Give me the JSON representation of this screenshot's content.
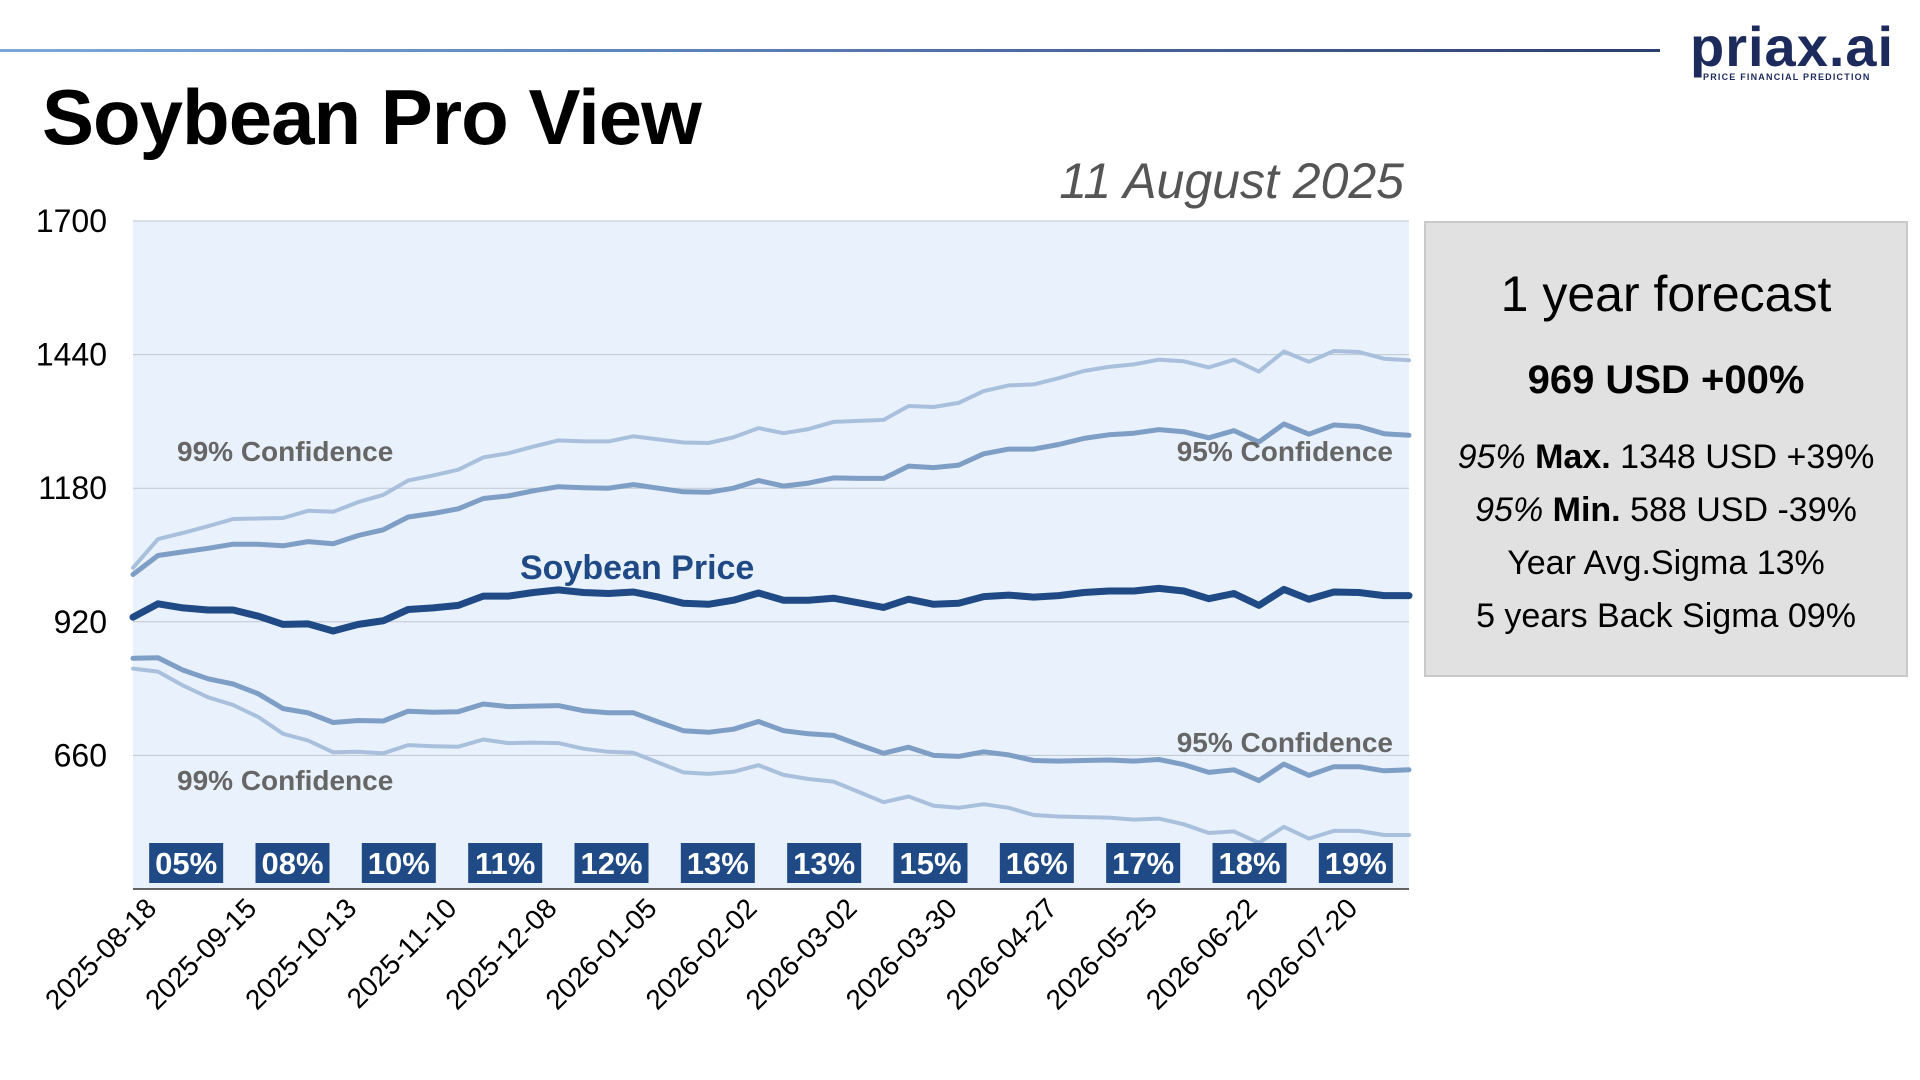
{
  "header": {
    "title": "Soybean Pro View",
    "date": "11 August 2025",
    "logo_text": "priax.ai",
    "logo_subtitle": "PRICE FINANCIAL PREDICTION"
  },
  "forecast_panel": {
    "title": "1 year forecast",
    "price_summary": "969 USD +00%",
    "max": {
      "prefix": "95%",
      "label": "Max.",
      "value": "1348 USD +39%"
    },
    "min": {
      "prefix": "95%",
      "label": "Min.",
      "value": "588 USD -39%"
    },
    "year_avg_sigma": "Year Avg.Sigma 13%",
    "back_sigma": "5 years Back Sigma 09%"
  },
  "colors": {
    "price": "#1f4a85",
    "band95": "#7f9ec6",
    "band99": "#a9c0dd",
    "plot_bg": "#e8f1fc",
    "sigma_box": "#1f4a85"
  },
  "chart_data": {
    "type": "line",
    "title": "Soybean Pro View",
    "xlabel": "",
    "ylabel": "",
    "ylim": [
      400,
      1700
    ],
    "yticks": [
      660,
      920,
      1180,
      1440,
      1700
    ],
    "grid": true,
    "x_tick_labels": [
      "2025-08-18",
      "2025-09-15",
      "2025-10-13",
      "2025-11-10",
      "2025-12-08",
      "2026-01-05",
      "2026-02-02",
      "2026-03-02",
      "2026-03-30",
      "2026-04-27",
      "2026-05-25",
      "2026-06-22",
      "2026-07-20"
    ],
    "x": [
      "2025-08-11",
      "2025-08-18",
      "2025-08-25",
      "2025-09-01",
      "2025-09-08",
      "2025-09-15",
      "2025-09-22",
      "2025-09-29",
      "2025-10-06",
      "2025-10-13",
      "2025-10-20",
      "2025-10-27",
      "2025-11-03",
      "2025-11-10",
      "2025-11-17",
      "2025-11-24",
      "2025-12-01",
      "2025-12-08",
      "2025-12-15",
      "2025-12-22",
      "2025-12-29",
      "2026-01-05",
      "2026-01-12",
      "2026-01-19",
      "2026-01-26",
      "2026-02-02",
      "2026-02-09",
      "2026-02-16",
      "2026-02-23",
      "2026-03-02",
      "2026-03-09",
      "2026-03-16",
      "2026-03-23",
      "2026-03-30",
      "2026-04-06",
      "2026-04-13",
      "2026-04-20",
      "2026-04-27",
      "2026-05-04",
      "2026-05-11",
      "2026-05-18",
      "2026-05-25",
      "2026-06-01",
      "2026-06-08",
      "2026-06-15",
      "2026-06-22",
      "2026-06-29",
      "2026-07-06",
      "2026-07-13",
      "2026-07-20",
      "2026-07-27",
      "2026-08-03"
    ],
    "series": [
      {
        "name": "Soybean Price",
        "role": "price",
        "values": [
          929,
          955,
          947,
          943,
          943,
          931,
          915,
          916,
          902,
          915,
          922,
          944,
          947,
          952,
          970,
          970,
          977,
          982,
          977,
          975,
          978,
          968,
          956,
          954,
          962,
          976,
          962,
          962,
          966,
          957,
          948,
          964,
          954,
          956,
          969,
          972,
          968,
          971,
          977,
          980,
          980,
          985,
          980,
          965,
          975,
          952,
          983,
          964,
          978,
          977,
          971,
          971
        ]
      },
      {
        "name": "95% Confidence",
        "role": "band95_upper",
        "values": [
          1012,
          1049,
          1056,
          1063,
          1071,
          1071,
          1068,
          1076,
          1072,
          1088,
          1099,
          1124,
          1131,
          1140,
          1160,
          1165,
          1175,
          1183,
          1181,
          1180,
          1187,
          1180,
          1173,
          1172,
          1180,
          1195,
          1184,
          1190,
          1200,
          1199,
          1199,
          1223,
          1220,
          1225,
          1247,
          1256,
          1256,
          1265,
          1277,
          1284,
          1287,
          1294,
          1290,
          1278,
          1292,
          1270,
          1305,
          1285,
          1303,
          1300,
          1286,
          1283
        ]
      },
      {
        "name": "95% Confidence",
        "role": "band95_lower",
        "values": [
          849,
          850,
          826,
          809,
          799,
          780,
          751,
          743,
          724,
          728,
          727,
          746,
          744,
          745,
          760,
          755,
          756,
          757,
          747,
          743,
          743,
          725,
          708,
          705,
          711,
          726,
          708,
          702,
          699,
          681,
          664,
          676,
          660,
          658,
          667,
          661,
          650,
          649,
          650,
          651,
          649,
          652,
          642,
          627,
          632,
          611,
          643,
          621,
          638,
          638,
          630,
          632
        ]
      },
      {
        "name": "99% Confidence",
        "role": "band99_upper",
        "values": [
          1025,
          1081,
          1093,
          1106,
          1120,
          1121,
          1122,
          1136,
          1134,
          1153,
          1167,
          1195,
          1205,
          1216,
          1240,
          1248,
          1261,
          1273,
          1271,
          1271,
          1281,
          1275,
          1269,
          1268,
          1279,
          1297,
          1287,
          1295,
          1309,
          1311,
          1313,
          1340,
          1338,
          1346,
          1369,
          1380,
          1382,
          1394,
          1408,
          1416,
          1421,
          1430,
          1427,
          1415,
          1430,
          1407,
          1446,
          1426,
          1447,
          1445,
          1432,
          1429
        ]
      },
      {
        "name": "99% Confidence",
        "role": "band99_lower",
        "values": [
          829,
          823,
          796,
          773,
          758,
          735,
          702,
          689,
          666,
          667,
          664,
          680,
          678,
          677,
          691,
          684,
          685,
          684,
          673,
          667,
          665,
          646,
          627,
          624,
          628,
          641,
          622,
          614,
          609,
          589,
          569,
          580,
          562,
          558,
          565,
          558,
          544,
          541,
          540,
          539,
          535,
          537,
          526,
          509,
          512,
          490,
          521,
          498,
          513,
          513,
          505,
          505
        ]
      }
    ],
    "band_labels": [
      "99% Confidence",
      "95% Confidence",
      "95% Confidence",
      "99% Confidence"
    ],
    "price_label": "Soybean Price",
    "sigma_labels": [
      "05%",
      "08%",
      "10%",
      "11%",
      "12%",
      "13%",
      "13%",
      "15%",
      "16%",
      "17%",
      "18%",
      "19%"
    ]
  }
}
